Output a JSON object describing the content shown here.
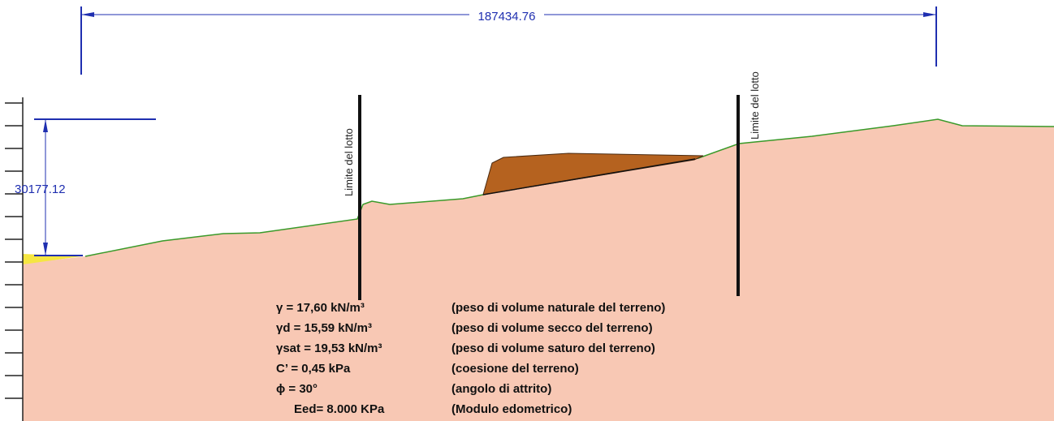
{
  "dimensions": {
    "horizontal": "187434.76",
    "vertical": "30177.12"
  },
  "boundary_labels": [
    "Limite del lotto",
    "Limite del lotto"
  ],
  "properties": [
    [
      "γ = 17,60 kN/m³",
      "(peso di volume naturale del terreno)"
    ],
    [
      "γd = 15,59 kN/m³",
      "(peso di volume secco del terreno)"
    ],
    [
      "γsat = 19,53 kN/m³",
      "(peso di volume saturo del terreno)"
    ],
    [
      "C’ = 0,45 kPa",
      "(coesione del terreno)"
    ],
    [
      "ϕ = 30°",
      "(angolo di attrito)"
    ],
    [
      "Eed= 8.000 KPa",
      "(Modulo edometrico)"
    ]
  ]
}
